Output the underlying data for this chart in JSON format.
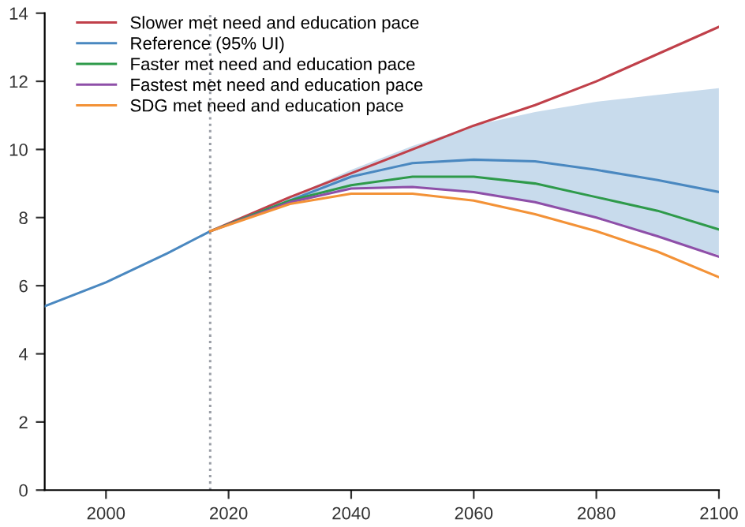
{
  "chart_data": {
    "type": "line",
    "xlim": [
      1990,
      2100
    ],
    "ylim": [
      0,
      14
    ],
    "xticks": [
      2000,
      2020,
      2040,
      2060,
      2080,
      2100
    ],
    "yticks": [
      0,
      2,
      4,
      6,
      8,
      10,
      12,
      14
    ],
    "grid": false,
    "legend": "top left",
    "line_style": "solid",
    "marker": "none",
    "ref_lines": [
      {
        "axis": "x",
        "value": 2017,
        "label": null,
        "color": "#9a9ea6",
        "line_style": "dotted"
      }
    ],
    "series": [
      {
        "name": "Slower met need and education pace",
        "color": "#c0404a",
        "x": [
          2017,
          2030,
          2040,
          2050,
          2060,
          2070,
          2080,
          2090,
          2100
        ],
        "values": [
          7.6,
          8.6,
          9.3,
          10.0,
          10.7,
          11.3,
          12.0,
          12.8,
          13.6
        ]
      },
      {
        "name": "Reference (95% UI)",
        "color": "#4a88c0",
        "x": [
          1990,
          2000,
          2010,
          2017,
          2030,
          2040,
          2050,
          2060,
          2070,
          2080,
          2090,
          2100
        ],
        "values": [
          5.4,
          6.1,
          6.95,
          7.6,
          8.5,
          9.2,
          9.6,
          9.7,
          9.65,
          9.4,
          9.1,
          8.75
        ],
        "lower": [
          null,
          null,
          null,
          7.6,
          8.4,
          8.85,
          8.9,
          8.75,
          8.45,
          8.0,
          7.45,
          6.9
        ],
        "upper": [
          null,
          null,
          null,
          7.6,
          8.6,
          9.4,
          10.1,
          10.7,
          11.1,
          11.4,
          11.6,
          11.8
        ]
      },
      {
        "name": "Faster met need and education pace",
        "color": "#2e9a4a",
        "x": [
          2017,
          2030,
          2040,
          2050,
          2060,
          2070,
          2080,
          2090,
          2100
        ],
        "values": [
          7.6,
          8.5,
          8.95,
          9.2,
          9.2,
          9.0,
          8.6,
          8.2,
          7.65
        ]
      },
      {
        "name": "Fastest met need and education pace",
        "color": "#8e4fa8",
        "x": [
          2017,
          2030,
          2040,
          2050,
          2060,
          2070,
          2080,
          2090,
          2100
        ],
        "values": [
          7.6,
          8.45,
          8.85,
          8.9,
          8.75,
          8.45,
          8.0,
          7.45,
          6.85
        ]
      },
      {
        "name": "SDG met need and education pace",
        "color": "#f39237",
        "x": [
          2017,
          2030,
          2040,
          2050,
          2060,
          2070,
          2080,
          2090,
          2100
        ],
        "values": [
          7.6,
          8.4,
          8.7,
          8.7,
          8.5,
          8.1,
          7.6,
          7.0,
          6.25
        ]
      }
    ]
  }
}
